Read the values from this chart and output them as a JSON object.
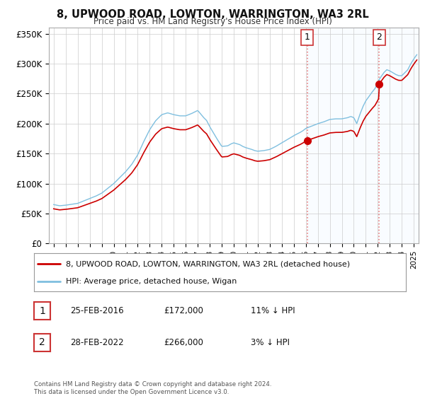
{
  "title": "8, UPWOOD ROAD, LOWTON, WARRINGTON, WA3 2RL",
  "subtitle": "Price paid vs. HM Land Registry's House Price Index (HPI)",
  "ylabel_ticks": [
    "£0",
    "£50K",
    "£100K",
    "£150K",
    "£200K",
    "£250K",
    "£300K",
    "£350K"
  ],
  "ytick_values": [
    0,
    50000,
    100000,
    150000,
    200000,
    250000,
    300000,
    350000
  ],
  "ylim": [
    0,
    360000
  ],
  "xlim_start": 1994.6,
  "xlim_end": 2025.4,
  "legend_line1": "8, UPWOOD ROAD, LOWTON, WARRINGTON, WA3 2RL (detached house)",
  "legend_line2": "HPI: Average price, detached house, Wigan",
  "sale1_label": "1",
  "sale1_date": "25-FEB-2016",
  "sale1_price": "£172,000",
  "sale1_hpi": "11% ↓ HPI",
  "sale2_label": "2",
  "sale2_date": "28-FEB-2022",
  "sale2_price": "£266,000",
  "sale2_hpi": "3% ↓ HPI",
  "footer": "Contains HM Land Registry data © Crown copyright and database right 2024.\nThis data is licensed under the Open Government Licence v3.0.",
  "hpi_color": "#7fbfdf",
  "price_color": "#cc0000",
  "sale1_x": 2016.12,
  "sale1_y": 172000,
  "sale2_x": 2022.12,
  "sale2_y": 266000,
  "vline_color": "#e88080",
  "shade_color": "#ddeeff",
  "background_color": "#ffffff",
  "grid_color": "#cccccc"
}
